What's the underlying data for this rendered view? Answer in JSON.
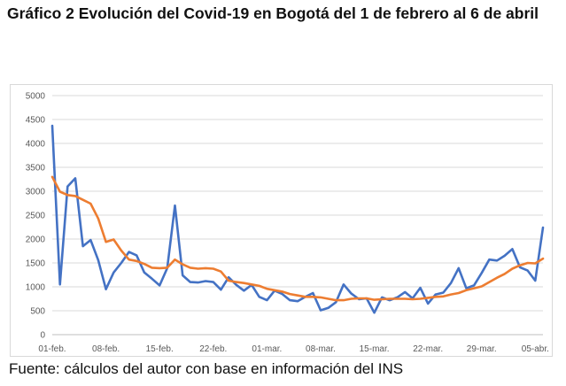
{
  "title": "Gráfico 2 Evolución del Covid-19 en Bogotá del 1 de febrero al 6 de abril",
  "source": "Fuente: cálculos del autor con base en información del INS",
  "chart_data": {
    "type": "line",
    "title": "",
    "xlabel": "",
    "ylabel": "",
    "ylim": [
      0,
      5000
    ],
    "yticks": [
      0,
      500,
      1000,
      1500,
      2000,
      2500,
      3000,
      3500,
      4000,
      4500,
      5000
    ],
    "x_start_label": "01-feb.",
    "xtick_labels": [
      "01-feb.",
      "08-feb.",
      "15-feb.",
      "22-feb.",
      "01-mar.",
      "08-mar.",
      "15-mar.",
      "22-mar.",
      "29-mar.",
      "05-abr."
    ],
    "grid": true,
    "legend": "none",
    "series": [
      {
        "color": "#4472c4",
        "values": [
          4370,
          1050,
          3100,
          3270,
          1850,
          1980,
          1560,
          950,
          1300,
          1500,
          1730,
          1660,
          1300,
          1170,
          1030,
          1390,
          2700,
          1240,
          1100,
          1090,
          1120,
          1100,
          940,
          1200,
          1040,
          920,
          1040,
          790,
          720,
          920,
          850,
          720,
          700,
          790,
          870,
          510,
          560,
          680,
          1050,
          860,
          740,
          760,
          460,
          780,
          720,
          780,
          890,
          760,
          980,
          650,
          840,
          880,
          1080,
          1390,
          970,
          1030,
          1290,
          1570,
          1550,
          1650,
          1790,
          1410,
          1340,
          1130,
          2240
        ]
      },
      {
        "color": "#ed7d31",
        "values": [
          3300,
          2990,
          2920,
          2900,
          2820,
          2740,
          2430,
          1940,
          1990,
          1760,
          1570,
          1540,
          1480,
          1400,
          1390,
          1400,
          1570,
          1470,
          1400,
          1380,
          1390,
          1380,
          1320,
          1130,
          1100,
          1080,
          1050,
          1020,
          960,
          930,
          900,
          850,
          820,
          790,
          790,
          780,
          750,
          720,
          720,
          750,
          760,
          760,
          730,
          740,
          750,
          750,
          750,
          740,
          750,
          770,
          790,
          800,
          840,
          870,
          930,
          970,
          1010,
          1100,
          1190,
          1270,
          1380,
          1450,
          1500,
          1490,
          1590
        ]
      }
    ]
  }
}
